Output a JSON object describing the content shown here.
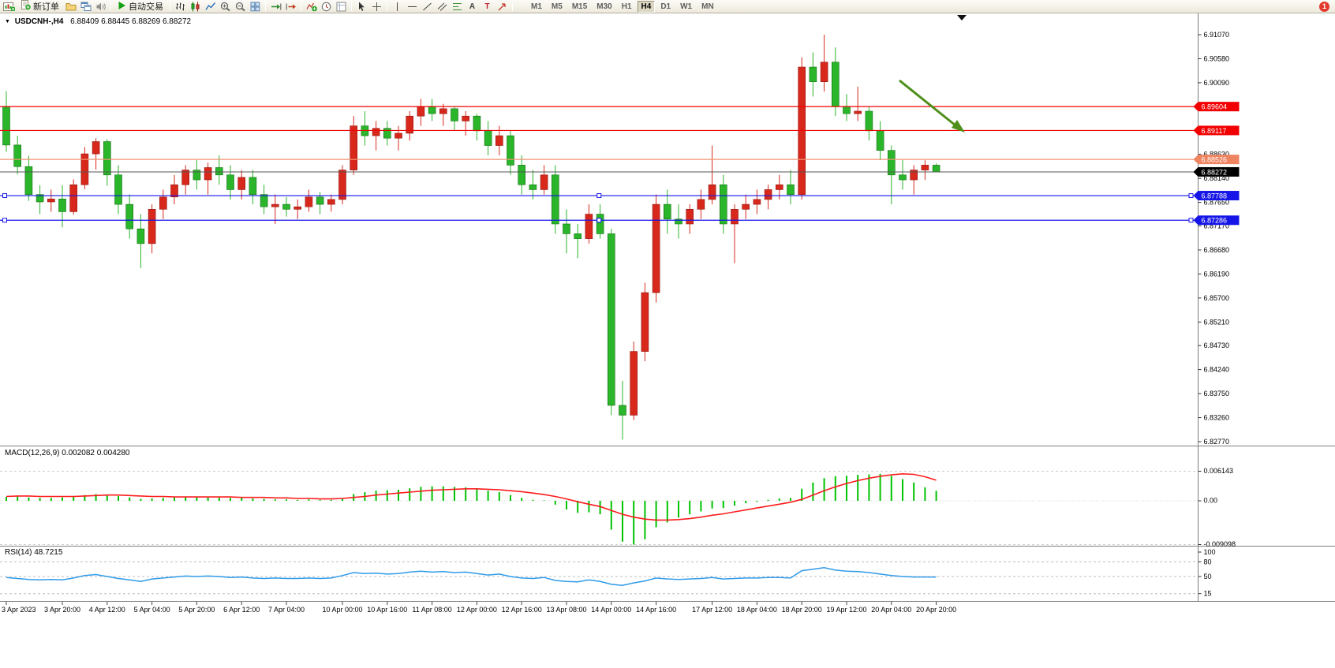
{
  "window": {
    "badge": "1"
  },
  "toolbar": {
    "new_order": "新订单",
    "autotrading": "自动交易",
    "timeframes": [
      "M1",
      "M5",
      "M15",
      "M30",
      "H1",
      "H4",
      "D1",
      "W1",
      "MN"
    ],
    "active_timeframe": "H4"
  },
  "chart": {
    "symbol": "USDCNH-,H4",
    "ohlc": "6.88409 6.88445 6.88269 6.88272"
  },
  "price_axis": {
    "ticks": [
      "6.91070",
      "6.90580",
      "6.90090",
      "6.88630",
      "6.88140",
      "6.87650",
      "6.87170",
      "6.86680",
      "6.86190",
      "6.85700",
      "6.85210",
      "6.84730",
      "6.84240",
      "6.83750",
      "6.83260",
      "6.82770"
    ]
  },
  "hlines": [
    {
      "name": "resistance-line-1",
      "label": "6.89604",
      "price": 6.89604,
      "color": "#f20000",
      "tag": "#f20000",
      "handles": false
    },
    {
      "name": "resistance-line-2",
      "label": "6.89117",
      "price": 6.89117,
      "color": "#f20000",
      "tag": "#f20000",
      "handles": false
    },
    {
      "name": "pivot-line",
      "label": "6.88526",
      "price": 6.88526,
      "color": "#f29272",
      "tag": "#ef8460",
      "handles": false
    },
    {
      "name": "support-line-1",
      "label": "6.87788",
      "price": 6.87788,
      "color": "#1515e8",
      "tag": "#1515e8",
      "handles": true
    },
    {
      "name": "support-line-2",
      "label": "6.87286",
      "price": 6.87286,
      "color": "#1515e8",
      "tag": "#1515e8",
      "handles": true
    }
  ],
  "current_price": {
    "label": "6.88272",
    "value": 6.88272
  },
  "macd_panel": {
    "label": "MACD(12,26,9) 0.002082 0.004280",
    "axis": [
      {
        "v": 0.006143,
        "t": "0.006143"
      },
      {
        "v": 0,
        "t": "0.00"
      },
      {
        "v": -0.009098,
        "t": "-0.009098"
      }
    ]
  },
  "rsi_panel": {
    "label": "RSI(14) 48.7215",
    "axis": [
      {
        "v": 100,
        "t": "100"
      },
      {
        "v": 80,
        "t": "80"
      },
      {
        "v": 50,
        "t": "50"
      },
      {
        "v": 15,
        "t": "15"
      }
    ],
    "levels": [
      80,
      50,
      15
    ]
  },
  "time_axis": [
    {
      "t": "3 Apr 2023",
      "bar": 0
    },
    {
      "t": "3 Apr 20:00",
      "bar": 5
    },
    {
      "t": "4 Apr 12:00",
      "bar": 9
    },
    {
      "t": "5 Apr 04:00",
      "bar": 13
    },
    {
      "t": "5 Apr 20:00",
      "bar": 17
    },
    {
      "t": "6 Apr 12:00",
      "bar": 21
    },
    {
      "t": "7 Apr 04:00",
      "bar": 25
    },
    {
      "t": "10 Apr 00:00",
      "bar": 30
    },
    {
      "t": "10 Apr 16:00",
      "bar": 34
    },
    {
      "t": "11 Apr 08:00",
      "bar": 38
    },
    {
      "t": "12 Apr 00:00",
      "bar": 42
    },
    {
      "t": "12 Apr 16:00",
      "bar": 46
    },
    {
      "t": "13 Apr 08:00",
      "bar": 50
    },
    {
      "t": "14 Apr 00:00",
      "bar": 54
    },
    {
      "t": "14 Apr 16:00",
      "bar": 58
    },
    {
      "t": "17 Apr 12:00",
      "bar": 63
    },
    {
      "t": "18 Apr 04:00",
      "bar": 67
    },
    {
      "t": "18 Apr 20:00",
      "bar": 71
    },
    {
      "t": "19 Apr 12:00",
      "bar": 75
    },
    {
      "t": "20 Apr 04:00",
      "bar": 79
    },
    {
      "t": "20 Apr 20:00",
      "bar": 83
    }
  ],
  "chart_data": {
    "type": "candlestick",
    "symbol": "USDCNH",
    "timeframe": "H4",
    "title": "USDCNH-,H4",
    "ylim": [
      6.8277,
      6.9107
    ],
    "up_color": "#d8281c",
    "down_color": "#2ab52a",
    "candles": [
      [
        6.896,
        6.8992,
        6.8868,
        6.8882
      ],
      [
        6.8882,
        6.8901,
        6.8822,
        6.8838
      ],
      [
        6.8838,
        6.886,
        6.8768,
        6.8781
      ],
      [
        6.8781,
        6.88,
        6.8741,
        6.8766
      ],
      [
        6.8766,
        6.8791,
        6.8746,
        6.8772
      ],
      [
        6.8772,
        6.88,
        6.8714,
        6.8746
      ],
      [
        6.8746,
        6.8812,
        6.874,
        6.8801
      ],
      [
        6.8801,
        6.8878,
        6.8792,
        6.8864
      ],
      [
        6.8864,
        6.8896,
        6.8832,
        6.8889
      ],
      [
        6.8889,
        6.8894,
        6.8799,
        6.8821
      ],
      [
        6.8821,
        6.8841,
        6.8741,
        6.8761
      ],
      [
        6.8761,
        6.8781,
        6.8691,
        6.8711
      ],
      [
        6.8711,
        6.8741,
        6.8631,
        6.8681
      ],
      [
        6.8681,
        6.8761,
        6.8661,
        6.8751
      ],
      [
        6.8751,
        6.8791,
        6.8731,
        6.8776
      ],
      [
        6.8776,
        6.8821,
        6.8761,
        6.8801
      ],
      [
        6.8801,
        6.8841,
        6.8781,
        6.8831
      ],
      [
        6.8831,
        6.8851,
        6.8791,
        6.8811
      ],
      [
        6.8811,
        6.8846,
        6.8781,
        6.8836
      ],
      [
        6.8836,
        6.8861,
        6.8801,
        6.8821
      ],
      [
        6.8821,
        6.8841,
        6.8771,
        6.8791
      ],
      [
        6.8791,
        6.8831,
        6.8771,
        6.8816
      ],
      [
        6.8816,
        6.8831,
        6.8761,
        6.8781
      ],
      [
        6.8781,
        6.8801,
        6.8741,
        6.8756
      ],
      [
        6.8756,
        6.8781,
        6.8721,
        6.8761
      ],
      [
        6.8761,
        6.8776,
        6.8736,
        6.8751
      ],
      [
        6.8751,
        6.8771,
        6.8731,
        6.8756
      ],
      [
        6.8756,
        6.8791,
        6.8746,
        6.8776
      ],
      [
        6.8776,
        6.8786,
        6.8741,
        6.8761
      ],
      [
        6.8761,
        6.8781,
        6.8746,
        6.8771
      ],
      [
        6.8771,
        6.8841,
        6.8761,
        6.8831
      ],
      [
        6.8831,
        6.8941,
        6.8821,
        6.8921
      ],
      [
        6.8921,
        6.8951,
        6.8881,
        6.8901
      ],
      [
        6.8901,
        6.8931,
        6.8871,
        6.8916
      ],
      [
        6.8916,
        6.8931,
        6.8881,
        6.8896
      ],
      [
        6.8896,
        6.8921,
        6.8871,
        6.8906
      ],
      [
        6.8906,
        6.8951,
        6.8891,
        6.8941
      ],
      [
        6.8941,
        6.8976,
        6.8921,
        6.8961
      ],
      [
        6.8961,
        6.8976,
        6.8931,
        6.8946
      ],
      [
        6.8946,
        6.8966,
        6.8921,
        6.8956
      ],
      [
        6.8956,
        6.8961,
        6.8911,
        6.8931
      ],
      [
        6.8931,
        6.8951,
        6.8901,
        6.8941
      ],
      [
        6.8941,
        6.8946,
        6.8891,
        6.8911
      ],
      [
        6.8911,
        6.8931,
        6.8861,
        6.8881
      ],
      [
        6.8881,
        6.8921,
        6.8861,
        6.8901
      ],
      [
        6.8901,
        6.8911,
        6.8821,
        6.8841
      ],
      [
        6.8841,
        6.8861,
        6.8781,
        6.8801
      ],
      [
        6.8801,
        6.8831,
        6.8771,
        6.8791
      ],
      [
        6.8791,
        6.8841,
        6.8781,
        6.8821
      ],
      [
        6.8821,
        6.8841,
        6.8701,
        6.8721
      ],
      [
        6.8721,
        6.8751,
        6.8661,
        6.8701
      ],
      [
        6.8701,
        6.8721,
        6.8651,
        6.8691
      ],
      [
        6.8691,
        6.8761,
        6.8681,
        6.8741
      ],
      [
        6.8741,
        6.8761,
        6.8691,
        6.8701
      ],
      [
        6.8701,
        6.8711,
        6.8331,
        6.8351
      ],
      [
        6.8351,
        6.8401,
        6.8281,
        6.8331
      ],
      [
        6.8331,
        6.8481,
        6.8321,
        6.8461
      ],
      [
        6.8461,
        6.8601,
        6.8441,
        6.8581
      ],
      [
        6.8581,
        6.8781,
        6.8561,
        6.8761
      ],
      [
        6.8761,
        6.8791,
        6.8701,
        6.8731
      ],
      [
        6.8731,
        6.8761,
        6.8691,
        6.8721
      ],
      [
        6.8721,
        6.8761,
        6.8701,
        6.8751
      ],
      [
        6.8751,
        6.8791,
        6.8731,
        6.8771
      ],
      [
        6.8771,
        6.8881,
        6.8761,
        6.8801
      ],
      [
        6.8801,
        6.8821,
        6.8701,
        6.8721
      ],
      [
        6.8721,
        6.8761,
        6.8641,
        6.8751
      ],
      [
        6.8751,
        6.8781,
        6.8731,
        6.8761
      ],
      [
        6.8761,
        6.8791,
        6.8741,
        6.8771
      ],
      [
        6.8771,
        6.8801,
        6.8751,
        6.8791
      ],
      [
        6.8791,
        6.8821,
        6.8771,
        6.8801
      ],
      [
        6.8801,
        6.8831,
        6.8761,
        6.8781
      ],
      [
        6.8781,
        6.9061,
        6.8771,
        6.9041
      ],
      [
        6.9041,
        6.9071,
        6.8981,
        6.9011
      ],
      [
        6.9011,
        6.9107,
        6.8991,
        6.9051
      ],
      [
        6.9051,
        6.9081,
        6.8941,
        6.8961
      ],
      [
        6.8961,
        6.8986,
        6.8931,
        6.8946
      ],
      [
        6.8946,
        6.9001,
        6.8931,
        6.8951
      ],
      [
        6.8951,
        6.8961,
        6.8891,
        6.8911
      ],
      [
        6.8911,
        6.8931,
        6.8851,
        6.8871
      ],
      [
        6.8871,
        6.8881,
        6.8761,
        6.8821
      ],
      [
        6.8821,
        6.8851,
        6.8791,
        6.8811
      ],
      [
        6.8811,
        6.8841,
        6.8781,
        6.8831
      ],
      [
        6.8831,
        6.8851,
        6.8811,
        6.8841
      ],
      [
        6.88409,
        6.88445,
        6.88269,
        6.88272
      ]
    ],
    "macd": {
      "ylim": [
        -0.009098,
        0.006143
      ],
      "current": [
        0.002082,
        0.00428
      ],
      "histogram": [
        0.0008,
        0.0009,
        0.0007,
        0.0006,
        0.0006,
        0.0007,
        0.0009,
        0.0012,
        0.0014,
        0.0013,
        0.001,
        0.0007,
        0.0004,
        0.0005,
        0.0006,
        0.0007,
        0.0008,
        0.0008,
        0.0008,
        0.0007,
        0.0006,
        0.0006,
        0.0005,
        0.0004,
        0.0003,
        0.0003,
        0.0002,
        0.0003,
        0.0002,
        0.0002,
        0.0006,
        0.0014,
        0.0018,
        0.0021,
        0.0022,
        0.0023,
        0.0026,
        0.0029,
        0.003,
        0.003,
        0.0029,
        0.0028,
        0.0025,
        0.0021,
        0.0018,
        0.0012,
        0.0006,
        0.0002,
        0.0001,
        -0.0008,
        -0.0018,
        -0.0025,
        -0.0024,
        -0.0028,
        -0.006,
        -0.0085,
        -0.0091,
        -0.008,
        -0.0055,
        -0.0045,
        -0.0035,
        -0.0028,
        -0.0022,
        -0.0016,
        -0.0015,
        -0.001,
        -0.0005,
        -0.0002,
        0.0002,
        0.0005,
        0.0006,
        0.0025,
        0.0038,
        0.0047,
        0.0051,
        0.0052,
        0.0054,
        0.0055,
        0.0056,
        0.0052,
        0.0045,
        0.0038,
        0.0028,
        0.002082
      ],
      "signal": [
        0.0009,
        0.001,
        0.001,
        0.0009,
        0.0009,
        0.0009,
        0.0009,
        0.001,
        0.0011,
        0.0012,
        0.0012,
        0.0011,
        0.001,
        0.0009,
        0.0009,
        0.0008,
        0.0008,
        0.0008,
        0.0008,
        0.0008,
        0.0008,
        0.0007,
        0.0007,
        0.0007,
        0.0006,
        0.0006,
        0.0005,
        0.0005,
        0.0004,
        0.0004,
        0.0005,
        0.0007,
        0.0009,
        0.0012,
        0.0014,
        0.0016,
        0.0018,
        0.002,
        0.0022,
        0.0023,
        0.0024,
        0.0025,
        0.0025,
        0.0024,
        0.0023,
        0.0021,
        0.0019,
        0.0016,
        0.0013,
        0.0009,
        0.0004,
        -0.0002,
        -0.0007,
        -0.0012,
        -0.002,
        -0.0028,
        -0.0034,
        -0.0038,
        -0.004,
        -0.004,
        -0.0039,
        -0.0037,
        -0.0034,
        -0.003,
        -0.0027,
        -0.0023,
        -0.0019,
        -0.0015,
        -0.0011,
        -0.0007,
        -0.0003,
        0.0003,
        0.0012,
        0.0021,
        0.0029,
        0.0036,
        0.0042,
        0.0047,
        0.0051,
        0.0054,
        0.0056,
        0.0055,
        0.005,
        0.00428
      ]
    },
    "rsi": {
      "current": 48.7215,
      "values": [
        48,
        46,
        44,
        43,
        44,
        43,
        47,
        52,
        54,
        50,
        46,
        43,
        40,
        45,
        47,
        49,
        51,
        50,
        51,
        50,
        48,
        49,
        47,
        46,
        47,
        46,
        46,
        47,
        46,
        47,
        52,
        58,
        56,
        57,
        55,
        56,
        59,
        61,
        59,
        60,
        58,
        59,
        56,
        53,
        55,
        50,
        47,
        46,
        48,
        42,
        40,
        39,
        43,
        40,
        34,
        32,
        37,
        41,
        47,
        45,
        44,
        45,
        46,
        48,
        45,
        46,
        47,
        47,
        48,
        48,
        47,
        62,
        65,
        68,
        63,
        61,
        60,
        58,
        55,
        52,
        50,
        49,
        49,
        48.72
      ]
    }
  }
}
